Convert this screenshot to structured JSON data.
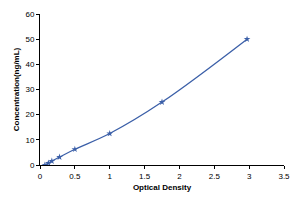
{
  "chart_data": {
    "type": "line",
    "x_label": "Optical Density",
    "y_label": "Concentration(ng/mL)",
    "x": [
      0.07,
      0.12,
      0.17,
      0.28,
      0.5,
      1.0,
      1.75,
      2.97
    ],
    "values": [
      0,
      0.78,
      1.56,
      3.13,
      6.25,
      12.5,
      25,
      50
    ],
    "color": "#3b5fa8",
    "marker": "star",
    "xlim": [
      0,
      3.5
    ],
    "xticks": [
      0,
      0.5,
      1,
      1.5,
      2,
      2.5,
      3,
      3.5
    ],
    "ylim": [
      0,
      60
    ],
    "yticks": [
      0,
      10,
      20,
      30,
      40,
      50,
      60
    ],
    "grid": false
  }
}
